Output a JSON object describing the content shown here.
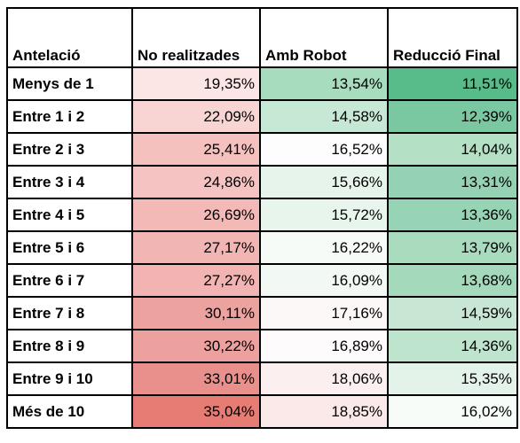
{
  "table": {
    "headers": [
      "Antelació",
      "No realitzades",
      "Amb Robot",
      "Reducció Final"
    ],
    "rows": [
      {
        "label": "Menys de 1",
        "values": [
          "19,35%",
          "13,54%",
          "11,51%"
        ],
        "colors": [
          "#fbe5e5",
          "#a8dcbf",
          "#57bb8a"
        ]
      },
      {
        "label": "Entre 1 i 2",
        "values": [
          "22,09%",
          "14,58%",
          "12,39%"
        ],
        "colors": [
          "#f8d4d3",
          "#c8e8d6",
          "#79c8a1"
        ]
      },
      {
        "label": "Entre 2 i 3",
        "values": [
          "25,41%",
          "16,52%",
          "14,04%"
        ],
        "colors": [
          "#f4c1bf",
          "#fcfdfc",
          "#b4e0c6"
        ]
      },
      {
        "label": "Entre 3 i 4",
        "values": [
          "24,86%",
          "15,66%",
          "13,31%"
        ],
        "colors": [
          "#f5c4c2",
          "#e6f4eb",
          "#95d2b3"
        ]
      },
      {
        "label": "Entre 4 i 5",
        "values": [
          "26,69%",
          "15,72%",
          "13,36%"
        ],
        "colors": [
          "#f2b9b7",
          "#e8f5ec",
          "#97d3b5"
        ]
      },
      {
        "label": "Entre 5 i 6",
        "values": [
          "27,17%",
          "16,22%",
          "13,79%"
        ],
        "colors": [
          "#f1b5b3",
          "#f6fbf8",
          "#a9dbbf"
        ]
      },
      {
        "label": "Entre 6 i 7",
        "values": [
          "27,27%",
          "16,09%",
          "13,68%"
        ],
        "colors": [
          "#f1b4b2",
          "#f2f9f4",
          "#a5d9bc"
        ]
      },
      {
        "label": "Entre 7 i 8",
        "values": [
          "30,11%",
          "17,16%",
          "14,59%"
        ],
        "colors": [
          "#eca29f",
          "#fdf8f8",
          "#c7e7d4"
        ]
      },
      {
        "label": "Entre 8 i 9",
        "values": [
          "30,22%",
          "16,89%",
          "14,36%"
        ],
        "colors": [
          "#eca19e",
          "#fdfbfb",
          "#bee4cd"
        ]
      },
      {
        "label": "Entre 9 i 10",
        "values": [
          "33,01%",
          "18,06%",
          "15,35%"
        ],
        "colors": [
          "#e9908c",
          "#fbefef",
          "#e3f3e9"
        ]
      },
      {
        "label": "Més de 10",
        "values": [
          "35,04%",
          "18,85%",
          "16,02%"
        ],
        "colors": [
          "#e67c73",
          "#fae9e8",
          "#f8fcf9"
        ]
      }
    ]
  }
}
